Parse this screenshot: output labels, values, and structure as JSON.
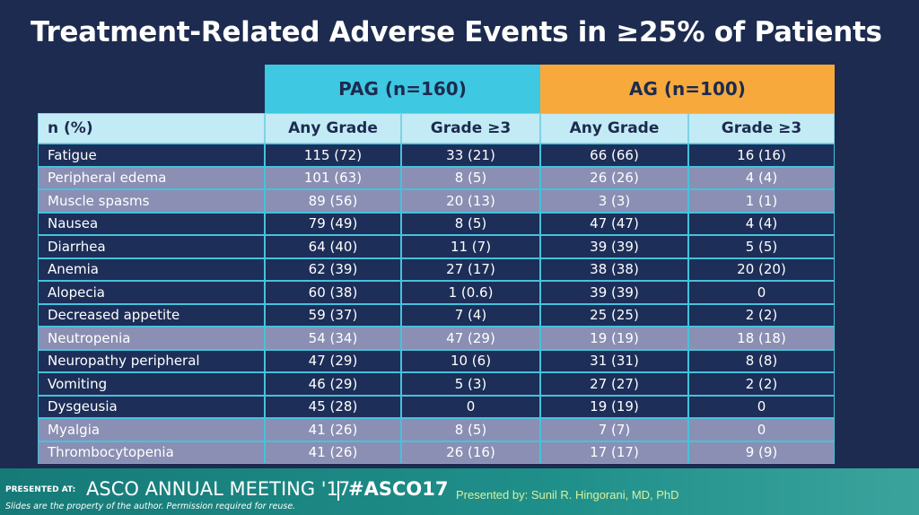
{
  "title": "Treatment-Related Adverse Events in ≥25% of Patients",
  "table": {
    "groups": [
      "PAG (n=160)",
      "AG (n=100)"
    ],
    "columns": [
      "n (%)",
      "Any Grade",
      "Grade ≥3",
      "Any Grade",
      "Grade ≥3"
    ],
    "rows": [
      [
        "Fatigue",
        "115 (72)",
        "33 (21)",
        "66 (66)",
        "16 (16)"
      ],
      [
        "Peripheral edema",
        "101 (63)",
        "8 (5)",
        "26 (26)",
        "4 (4)"
      ],
      [
        "Muscle spasms",
        "89 (56)",
        "20 (13)",
        "3 (3)",
        "1 (1)"
      ],
      [
        "Nausea",
        "79 (49)",
        "8 (5)",
        "47 (47)",
        "4 (4)"
      ],
      [
        "Diarrhea",
        "64 (40)",
        "11 (7)",
        "39 (39)",
        "5 (5)"
      ],
      [
        "Anemia",
        "62 (39)",
        "27 (17)",
        "38 (38)",
        "20 (20)"
      ],
      [
        "Alopecia",
        "60 (38)",
        "1 (0.6)",
        "39 (39)",
        "0"
      ],
      [
        "Decreased appetite",
        "59 (37)",
        "7 (4)",
        "25 (25)",
        "2 (2)"
      ],
      [
        "Neutropenia",
        "54 (34)",
        "47 (29)",
        "19 (19)",
        "18 (18)"
      ],
      [
        "Neuropathy peripheral",
        "47 (29)",
        "10 (6)",
        "31 (31)",
        "8 (8)"
      ],
      [
        "Vomiting",
        "46 (29)",
        "5 (3)",
        "27 (27)",
        "2 (2)"
      ],
      [
        "Dysgeusia",
        "45 (28)",
        "0",
        "19 (19)",
        "0"
      ],
      [
        "Myalgia",
        "41 (26)",
        "8 (5)",
        "7 (7)",
        "0"
      ],
      [
        "Thrombocytopenia",
        "41 (26)",
        "26 (16)",
        "17 (17)",
        "9 (9)"
      ]
    ]
  },
  "footer": {
    "presented_at": "PRESENTED AT:",
    "meeting": "ASCO ANNUAL MEETING '17",
    "hashtag": "#ASCO17",
    "disclaimer": "Slides are the property of the author. Permission required for reuse.",
    "presenter": "Presented by: Sunil R. Hingorani, MD, PhD"
  }
}
